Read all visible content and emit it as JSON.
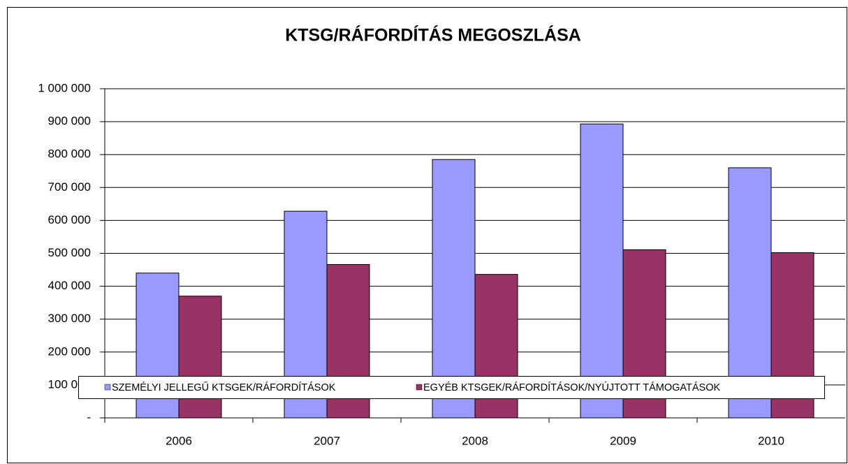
{
  "chart_data": {
    "type": "bar",
    "title": "KTSG/RÁFORDÍTÁS MEGOSZLÁSA",
    "categories": [
      "2006",
      "2007",
      "2008",
      "2009",
      "2010"
    ],
    "series": [
      {
        "name": "SZEMÉLYI JELLEGŰ KTSGEK/RÁFORDÍTÁSOK",
        "color": "#9999ff",
        "values": [
          440000,
          628000,
          785000,
          893000,
          760000
        ]
      },
      {
        "name": "EGYÉB KTSGEK/RÁFORDÍTÁSOK/NYÚJTOTT TÁMOGATÁSOK",
        "color": "#993366",
        "values": [
          370000,
          466000,
          436000,
          511000,
          502000
        ]
      }
    ],
    "ylim": [
      0,
      1000000
    ],
    "yticks": [
      {
        "value": 0,
        "label": "-"
      },
      {
        "value": 100000,
        "label": "100 000"
      },
      {
        "value": 200000,
        "label": "200 000"
      },
      {
        "value": 300000,
        "label": "300 000"
      },
      {
        "value": 400000,
        "label": "400 000"
      },
      {
        "value": 500000,
        "label": "500 000"
      },
      {
        "value": 600000,
        "label": "600 000"
      },
      {
        "value": 700000,
        "label": "700 000"
      },
      {
        "value": 800000,
        "label": "800 000"
      },
      {
        "value": 900000,
        "label": "900 000"
      },
      {
        "value": 1000000,
        "label": "1 000 000"
      }
    ],
    "grid": true,
    "legend": "bottom"
  }
}
